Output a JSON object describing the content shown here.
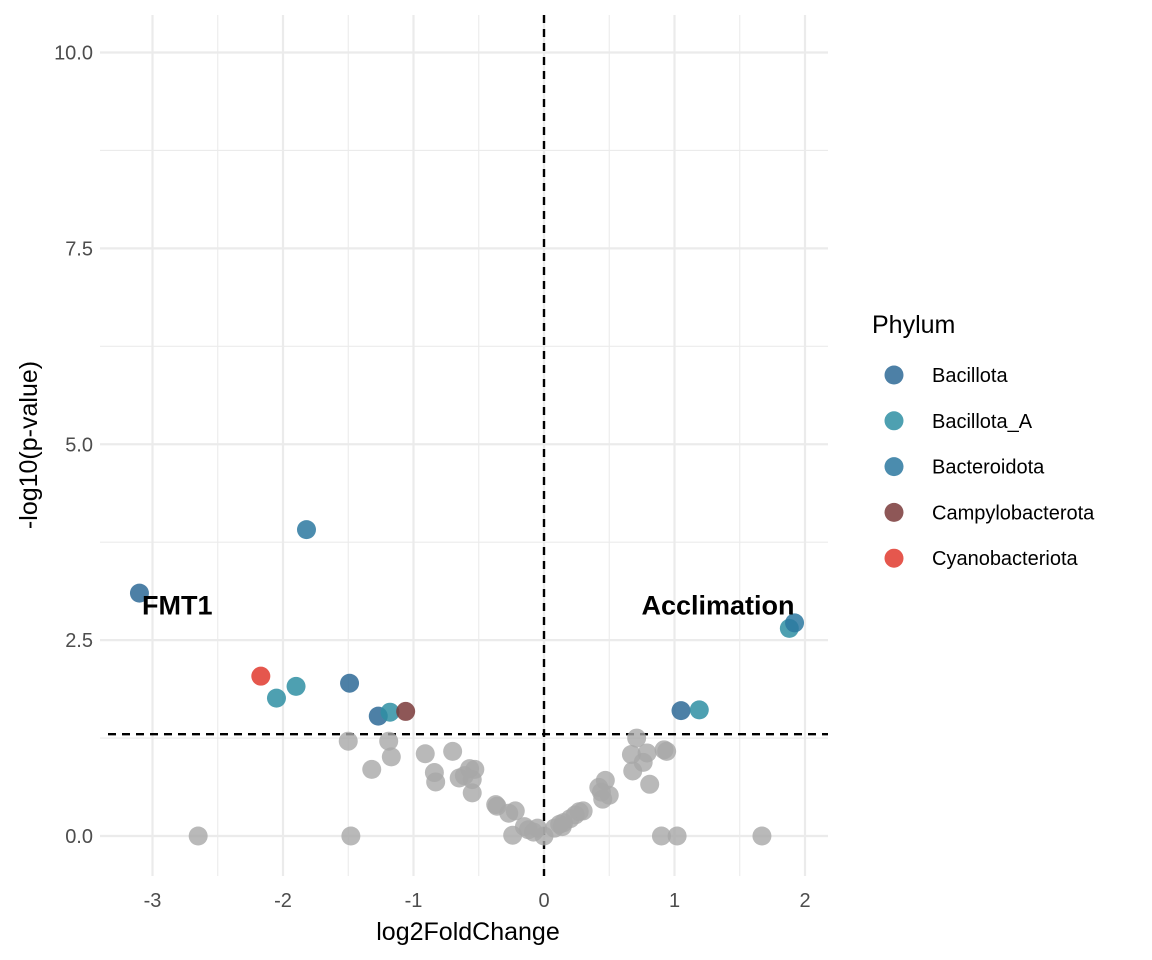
{
  "chart_data": {
    "type": "scatter",
    "xlabel": "log2FoldChange",
    "ylabel": "-log10(p-value)",
    "xlim": [
      -3.3,
      2.15
    ],
    "ylim": [
      -0.5,
      10.5
    ],
    "x_ticks": [
      -3,
      -2,
      -1,
      0,
      1,
      2
    ],
    "x_tick_labels": [
      "-3",
      "-2",
      "-1",
      "0",
      "1",
      "2"
    ],
    "y_ticks": [
      0,
      2.5,
      5,
      7.5,
      10
    ],
    "y_tick_labels": [
      "0.0",
      "2.5",
      "5.0",
      "7.5",
      "10.0"
    ],
    "grid": true,
    "thresholds": {
      "vertical_x": 0,
      "horizontal_y": 1.3
    },
    "annotations": [
      {
        "text": "FMT1",
        "x": -3.08,
        "y": 2.98
      },
      {
        "text": "Acclimation",
        "x": 1.92,
        "y": 2.98
      }
    ],
    "legend": {
      "title": "Phylum",
      "position": "right",
      "entries": [
        {
          "name": "Bacillota",
          "color": "#2e6a96"
        },
        {
          "name": "Bacillota_A",
          "color": "#2f8fa3"
        },
        {
          "name": "Bacteroidota",
          "color": "#2b78a0"
        },
        {
          "name": "Campylobacterota",
          "color": "#7a3a3a"
        },
        {
          "name": "Cyanobacteriota",
          "color": "#e03a2e"
        }
      ]
    },
    "nonsignificant_color": "#a8a8a8",
    "series": [
      {
        "name": "Bacillota",
        "color": "#2e6a96",
        "points": [
          [
            -3.1,
            3.1
          ],
          [
            -1.49,
            1.95
          ],
          [
            -1.27,
            1.53
          ],
          [
            1.05,
            1.6
          ]
        ]
      },
      {
        "name": "Bacillota_A",
        "color": "#2f8fa3",
        "points": [
          [
            -2.05,
            1.76
          ],
          [
            -1.9,
            1.91
          ],
          [
            -1.18,
            1.58
          ],
          [
            1.19,
            1.61
          ],
          [
            1.88,
            2.65
          ]
        ]
      },
      {
        "name": "Bacteroidota",
        "color": "#2b78a0",
        "points": [
          [
            -1.82,
            3.91
          ],
          [
            1.92,
            2.72
          ]
        ]
      },
      {
        "name": "Campylobacterota",
        "color": "#7a3a3a",
        "points": [
          [
            -1.06,
            1.59
          ]
        ]
      },
      {
        "name": "Cyanobacteriota",
        "color": "#e03a2e",
        "points": [
          [
            -2.17,
            2.04
          ]
        ]
      }
    ],
    "nonsignificant_points": [
      [
        -2.65,
        0.0
      ],
      [
        -1.48,
        0.0
      ],
      [
        -1.5,
        1.21
      ],
      [
        -1.32,
        0.85
      ],
      [
        -1.19,
        1.21
      ],
      [
        -1.17,
        1.01
      ],
      [
        -0.91,
        1.05
      ],
      [
        -0.84,
        0.81
      ],
      [
        -0.83,
        0.69
      ],
      [
        -0.7,
        1.08
      ],
      [
        -0.65,
        0.74
      ],
      [
        -0.61,
        0.77
      ],
      [
        -0.57,
        0.86
      ],
      [
        -0.55,
        0.72
      ],
      [
        -0.55,
        0.55
      ],
      [
        -0.53,
        0.85
      ],
      [
        -0.37,
        0.4
      ],
      [
        -0.36,
        0.38
      ],
      [
        -0.27,
        0.29
      ],
      [
        -0.22,
        0.32
      ],
      [
        -0.24,
        0.01
      ],
      [
        -0.15,
        0.12
      ],
      [
        -0.12,
        0.08
      ],
      [
        -0.08,
        0.05
      ],
      [
        -0.05,
        0.1
      ],
      [
        0.0,
        0.0
      ],
      [
        0.08,
        0.1
      ],
      [
        0.12,
        0.15
      ],
      [
        0.15,
        0.17
      ],
      [
        0.14,
        0.12
      ],
      [
        0.2,
        0.22
      ],
      [
        0.24,
        0.27
      ],
      [
        0.27,
        0.31
      ],
      [
        0.3,
        0.32
      ],
      [
        0.42,
        0.62
      ],
      [
        0.44,
        0.56
      ],
      [
        0.45,
        0.47
      ],
      [
        0.5,
        0.52
      ],
      [
        0.47,
        0.71
      ],
      [
        0.67,
        1.04
      ],
      [
        0.68,
        0.83
      ],
      [
        0.71,
        1.25
      ],
      [
        0.76,
        0.94
      ],
      [
        0.79,
        1.06
      ],
      [
        0.81,
        0.66
      ],
      [
        0.9,
        0.0
      ],
      [
        0.92,
        1.1
      ],
      [
        0.94,
        1.08
      ],
      [
        1.02,
        0.0
      ],
      [
        1.67,
        0.0
      ]
    ]
  }
}
